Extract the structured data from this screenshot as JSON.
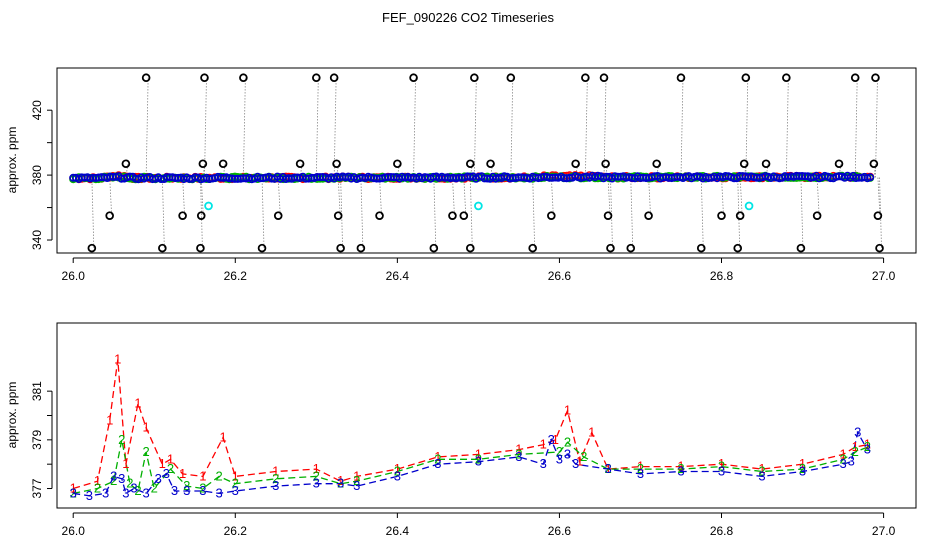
{
  "title": "FEF_090226  CO2 Timeseries",
  "colors": {
    "series1": "#ff0000",
    "series2": "#00b000",
    "series3": "#0000cc",
    "flag": "#000000",
    "drop": "#00e5e5",
    "connector": "#888888"
  },
  "chart_data": [
    {
      "type": "scatter",
      "ylabel": "approx. ppm",
      "xlim": [
        25.98,
        27.04
      ],
      "ylim": [
        332,
        446
      ],
      "xticks": [
        "26.0",
        "26.2",
        "26.4",
        "26.6",
        "26.8",
        "27.0"
      ],
      "yticks": [
        "340",
        "380",
        "420"
      ],
      "baseline_range": [
        376.5,
        380.5
      ],
      "flagged_high": [
        {
          "x": 26.09,
          "y": 440
        },
        {
          "x": 26.162,
          "y": 440
        },
        {
          "x": 26.21,
          "y": 440
        },
        {
          "x": 26.3,
          "y": 440
        },
        {
          "x": 26.322,
          "y": 440
        },
        {
          "x": 26.42,
          "y": 440
        },
        {
          "x": 26.495,
          "y": 440
        },
        {
          "x": 26.54,
          "y": 440
        },
        {
          "x": 26.632,
          "y": 440
        },
        {
          "x": 26.655,
          "y": 440
        },
        {
          "x": 26.75,
          "y": 440
        },
        {
          "x": 26.83,
          "y": 440
        },
        {
          "x": 26.88,
          "y": 440
        },
        {
          "x": 26.965,
          "y": 440
        },
        {
          "x": 26.99,
          "y": 440
        }
      ],
      "flagged_mid_high": [
        {
          "x": 26.065,
          "y": 387
        },
        {
          "x": 26.16,
          "y": 387
        },
        {
          "x": 26.185,
          "y": 387
        },
        {
          "x": 26.28,
          "y": 387
        },
        {
          "x": 26.325,
          "y": 387
        },
        {
          "x": 26.4,
          "y": 387
        },
        {
          "x": 26.49,
          "y": 387
        },
        {
          "x": 26.515,
          "y": 387
        },
        {
          "x": 26.62,
          "y": 387
        },
        {
          "x": 26.657,
          "y": 387
        },
        {
          "x": 26.72,
          "y": 387
        },
        {
          "x": 26.828,
          "y": 387
        },
        {
          "x": 26.855,
          "y": 387
        },
        {
          "x": 26.945,
          "y": 387
        },
        {
          "x": 26.988,
          "y": 387
        }
      ],
      "flagged_mid_low": [
        {
          "x": 26.045,
          "y": 355
        },
        {
          "x": 26.135,
          "y": 355
        },
        {
          "x": 26.158,
          "y": 355
        },
        {
          "x": 26.253,
          "y": 355
        },
        {
          "x": 26.327,
          "y": 355
        },
        {
          "x": 26.378,
          "y": 355
        },
        {
          "x": 26.468,
          "y": 355
        },
        {
          "x": 26.482,
          "y": 355
        },
        {
          "x": 26.59,
          "y": 355
        },
        {
          "x": 26.66,
          "y": 355
        },
        {
          "x": 26.71,
          "y": 355
        },
        {
          "x": 26.8,
          "y": 355
        },
        {
          "x": 26.823,
          "y": 355
        },
        {
          "x": 26.918,
          "y": 355
        },
        {
          "x": 26.993,
          "y": 355
        }
      ],
      "flagged_low": [
        {
          "x": 26.023,
          "y": 335
        },
        {
          "x": 26.11,
          "y": 335
        },
        {
          "x": 26.157,
          "y": 335
        },
        {
          "x": 26.233,
          "y": 335
        },
        {
          "x": 26.33,
          "y": 335
        },
        {
          "x": 26.355,
          "y": 335
        },
        {
          "x": 26.445,
          "y": 335
        },
        {
          "x": 26.49,
          "y": 335
        },
        {
          "x": 26.567,
          "y": 335
        },
        {
          "x": 26.663,
          "y": 335
        },
        {
          "x": 26.688,
          "y": 335
        },
        {
          "x": 26.775,
          "y": 335
        },
        {
          "x": 26.82,
          "y": 335
        },
        {
          "x": 26.898,
          "y": 335
        },
        {
          "x": 26.995,
          "y": 335
        }
      ],
      "dropouts": [
        {
          "x": 26.167,
          "y": 361
        },
        {
          "x": 26.5,
          "y": 361
        },
        {
          "x": 26.834,
          "y": 361
        }
      ]
    },
    {
      "type": "line",
      "ylabel": "approx. ppm",
      "xlim": [
        25.98,
        27.04
      ],
      "ylim": [
        376.2,
        383.8
      ],
      "xticks": [
        "26.0",
        "26.2",
        "26.4",
        "26.6",
        "26.8",
        "27.0"
      ],
      "yticks": [
        "377",
        "379",
        "381"
      ],
      "series": [
        {
          "name": "1",
          "x": [
            26.0,
            26.03,
            26.045,
            26.055,
            26.065,
            26.08,
            26.09,
            26.11,
            26.12,
            26.135,
            26.16,
            26.185,
            26.2,
            26.25,
            26.3,
            26.33,
            26.35,
            26.4,
            26.45,
            26.5,
            26.55,
            26.58,
            26.595,
            26.61,
            26.625,
            26.64,
            26.66,
            26.7,
            26.75,
            26.8,
            26.85,
            26.9,
            26.95,
            26.965,
            26.98
          ],
          "y": [
            377.0,
            377.3,
            379.8,
            382.3,
            378.0,
            380.5,
            379.5,
            378.0,
            378.2,
            377.6,
            377.5,
            379.1,
            377.5,
            377.7,
            377.8,
            377.3,
            377.5,
            377.8,
            378.3,
            378.4,
            378.6,
            378.8,
            379.0,
            380.2,
            378.1,
            379.3,
            377.8,
            377.9,
            377.9,
            378.0,
            377.8,
            378.0,
            378.4,
            378.7,
            378.8
          ]
        },
        {
          "name": "2",
          "x": [
            26.0,
            26.03,
            26.05,
            26.06,
            26.07,
            26.08,
            26.09,
            26.1,
            26.12,
            26.14,
            26.16,
            26.18,
            26.2,
            26.25,
            26.3,
            26.33,
            26.35,
            26.4,
            26.45,
            26.5,
            26.55,
            26.6,
            26.61,
            26.63,
            26.66,
            26.7,
            26.75,
            26.8,
            26.85,
            26.9,
            26.95,
            26.965,
            26.98
          ],
          "y": [
            376.8,
            377.0,
            377.3,
            379.0,
            377.2,
            376.9,
            378.5,
            377.0,
            377.8,
            377.1,
            377.0,
            377.5,
            377.2,
            377.4,
            377.5,
            377.2,
            377.3,
            377.7,
            378.2,
            378.2,
            378.4,
            378.5,
            378.9,
            378.3,
            377.8,
            377.8,
            377.8,
            377.9,
            377.7,
            377.8,
            378.2,
            378.5,
            378.7
          ]
        },
        {
          "name": "3",
          "x": [
            26.0,
            26.02,
            26.04,
            26.05,
            26.06,
            26.065,
            26.075,
            26.09,
            26.105,
            26.115,
            26.125,
            26.14,
            26.16,
            26.18,
            26.2,
            26.25,
            26.3,
            26.33,
            26.35,
            26.4,
            26.45,
            26.5,
            26.55,
            26.58,
            26.59,
            26.6,
            26.61,
            26.62,
            26.66,
            26.7,
            26.75,
            26.8,
            26.85,
            26.9,
            26.95,
            26.96,
            26.968,
            26.98
          ],
          "y": [
            376.8,
            376.7,
            376.8,
            377.5,
            377.4,
            376.8,
            377.0,
            376.8,
            377.4,
            377.6,
            376.9,
            376.9,
            376.9,
            376.8,
            376.9,
            377.1,
            377.2,
            377.2,
            377.1,
            377.5,
            378.0,
            378.1,
            378.3,
            378.0,
            379.0,
            378.2,
            378.4,
            378.0,
            377.8,
            377.6,
            377.7,
            377.7,
            377.5,
            377.7,
            378.0,
            378.1,
            379.3,
            378.6
          ]
        }
      ]
    }
  ]
}
